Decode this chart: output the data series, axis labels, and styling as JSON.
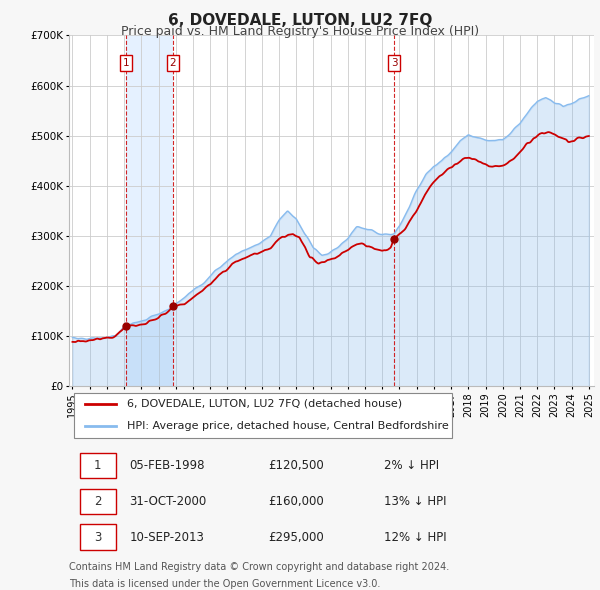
{
  "title": "6, DOVEDALE, LUTON, LU2 7FQ",
  "subtitle": "Price paid vs. HM Land Registry's House Price Index (HPI)",
  "ylim": [
    0,
    700000
  ],
  "yticks": [
    0,
    100000,
    200000,
    300000,
    400000,
    500000,
    600000,
    700000
  ],
  "ytick_labels": [
    "£0",
    "£100K",
    "£200K",
    "£300K",
    "£400K",
    "£500K",
    "£600K",
    "£700K"
  ],
  "background_color": "#f7f7f7",
  "plot_bg_color": "#ffffff",
  "sale_color": "#cc0000",
  "hpi_color": "#88bbee",
  "vline_color": "#cc0000",
  "transactions": [
    {
      "id": 1,
      "date": "05-FEB-1998",
      "year": 1998.09,
      "price": 120500,
      "pct": "2%",
      "dir": "↓"
    },
    {
      "id": 2,
      "date": "31-OCT-2000",
      "year": 2000.83,
      "price": 160000,
      "pct": "13%",
      "dir": "↓"
    },
    {
      "id": 3,
      "date": "10-SEP-2013",
      "year": 2013.69,
      "price": 295000,
      "pct": "12%",
      "dir": "↓"
    }
  ],
  "legend_sale_label": "6, DOVEDALE, LUTON, LU2 7FQ (detached house)",
  "legend_hpi_label": "HPI: Average price, detached house, Central Bedfordshire",
  "footer_line1": "Contains HM Land Registry data © Crown copyright and database right 2024.",
  "footer_line2": "This data is licensed under the Open Government Licence v3.0.",
  "title_fontsize": 11,
  "subtitle_fontsize": 9,
  "tick_fontsize": 7.5,
  "legend_fontsize": 8,
  "footer_fontsize": 7,
  "table_fontsize": 8.5,
  "hpi_anchors_x": [
    1995.0,
    1996.0,
    1997.0,
    1997.5,
    1998.09,
    1999.0,
    2000.0,
    2000.83,
    2001.5,
    2002.5,
    2003.5,
    2004.5,
    2005.5,
    2006.5,
    2007.0,
    2007.5,
    2008.0,
    2008.5,
    2009.0,
    2009.5,
    2010.0,
    2010.5,
    2011.0,
    2011.5,
    2012.0,
    2012.5,
    2013.0,
    2013.5,
    2013.69,
    2014.0,
    2014.5,
    2015.0,
    2015.5,
    2016.0,
    2016.5,
    2017.0,
    2017.5,
    2018.0,
    2018.5,
    2019.0,
    2019.5,
    2020.0,
    2020.5,
    2021.0,
    2021.5,
    2022.0,
    2022.5,
    2023.0,
    2023.5,
    2024.0,
    2024.5,
    2025.0
  ],
  "hpi_anchors_y": [
    93000,
    95000,
    99000,
    103000,
    122000,
    128000,
    143000,
    158000,
    178000,
    205000,
    235000,
    265000,
    280000,
    300000,
    330000,
    350000,
    335000,
    305000,
    278000,
    262000,
    268000,
    280000,
    298000,
    318000,
    315000,
    308000,
    304000,
    303000,
    305000,
    320000,
    355000,
    390000,
    420000,
    440000,
    452000,
    468000,
    490000,
    502000,
    497000,
    492000,
    492000,
    494000,
    508000,
    525000,
    548000,
    568000,
    578000,
    568000,
    558000,
    565000,
    572000,
    580000
  ],
  "sale_anchors_x": [
    1995.0,
    1996.0,
    1997.0,
    1997.5,
    1998.09,
    1999.0,
    2000.0,
    2000.83,
    2001.5,
    2002.5,
    2003.5,
    2004.5,
    2005.5,
    2006.5,
    2007.0,
    2007.8,
    2008.2,
    2008.8,
    2009.3,
    2009.8,
    2010.3,
    2010.8,
    2011.3,
    2011.8,
    2012.3,
    2012.8,
    2013.2,
    2013.5,
    2013.69,
    2014.2,
    2014.8,
    2015.3,
    2015.8,
    2016.3,
    2016.8,
    2017.3,
    2017.8,
    2018.3,
    2018.8,
    2019.3,
    2019.8,
    2020.3,
    2020.8,
    2021.3,
    2021.8,
    2022.3,
    2022.8,
    2023.3,
    2023.8,
    2024.3,
    2024.8,
    2025.0
  ],
  "sale_anchors_y": [
    90000,
    92000,
    97000,
    100000,
    120500,
    122000,
    136000,
    160000,
    165000,
    190000,
    220000,
    248000,
    262000,
    275000,
    295000,
    305000,
    295000,
    258000,
    245000,
    252000,
    258000,
    268000,
    278000,
    285000,
    278000,
    272000,
    270000,
    275000,
    295000,
    308000,
    340000,
    370000,
    400000,
    418000,
    432000,
    445000,
    455000,
    455000,
    445000,
    440000,
    440000,
    445000,
    460000,
    478000,
    495000,
    505000,
    505000,
    498000,
    488000,
    495000,
    498000,
    498000
  ]
}
